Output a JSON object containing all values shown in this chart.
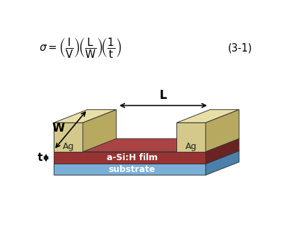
{
  "fig_width": 4.13,
  "fig_height": 3.49,
  "dpi": 100,
  "formula_text": "$\\sigma = \\left(\\dfrac{\\mathrm{I}}{\\mathrm{V}}\\right)\\!\\left(\\dfrac{\\mathrm{L}}{\\mathrm{W}}\\right)\\!\\left(\\dfrac{1}{\\mathrm{t}}\\right)$",
  "eq_number": "(3-1)",
  "label_L": "L",
  "label_W": "W",
  "label_t": "t",
  "label_Ag1": "Ag",
  "label_Ag2": "Ag",
  "label_film": "a-Si:H film",
  "label_substrate": "substrate",
  "color_substrate_face": "#7ab0d8",
  "color_substrate_top": "#9bc8e8",
  "color_substrate_side": "#4a80aa",
  "color_film_face": "#993333",
  "color_film_top": "#aa4444",
  "color_film_side": "#6b2222",
  "color_elec_face": "#d4c98a",
  "color_elec_top": "#e8dfa8",
  "color_elec_side": "#b8a960",
  "bg_color": "#ffffff"
}
